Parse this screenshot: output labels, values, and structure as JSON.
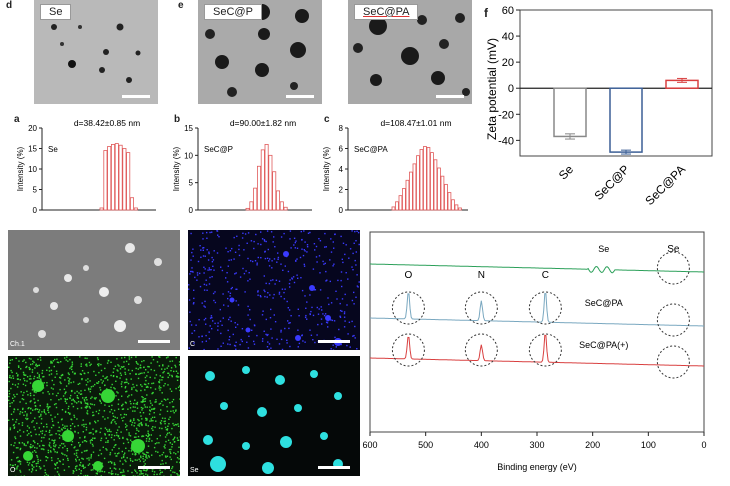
{
  "panel_letters": {
    "d": "d",
    "e": "e",
    "f": "f",
    "a": "a",
    "b": "b",
    "c": "c"
  },
  "tem_labels": [
    "Se",
    "SeC@P",
    "SeC@PA"
  ],
  "map_labels": [
    "Ch.1",
    "C",
    "O",
    "Se"
  ],
  "colors": {
    "dls": "#e05a5a",
    "se_bar": "#888888",
    "secp_bar": "#3b5f96",
    "secpa_bar": "#d94040",
    "xps_se": "#2ca05a",
    "xps_secpa": "#7aa8c0",
    "xps_secpa_plus": "#d94040"
  },
  "chart_data": [
    {
      "id": "dls-se",
      "type": "bar",
      "annotation": "d=38.42±0.85 nm",
      "series_label": "Se",
      "ylabel": "Intensity (%)",
      "yticks": [
        "0",
        "5",
        "10",
        "15",
        "20"
      ],
      "ylim": [
        0,
        20
      ],
      "values": [
        0.5,
        14.5,
        15.5,
        16,
        16.2,
        15.8,
        15,
        14,
        3,
        0.5
      ]
    },
    {
      "id": "dls-secp",
      "type": "bar",
      "annotation": "d=90.00±1.82 nm",
      "series_label": "SeC@P",
      "ylabel": "Intensity (%)",
      "yticks": [
        "0",
        "5",
        "10",
        "15"
      ],
      "ylim": [
        0,
        15
      ],
      "values": [
        0.3,
        1.5,
        4,
        8,
        11,
        12,
        10,
        7,
        3.5,
        1.5,
        0.5
      ]
    },
    {
      "id": "dls-secpa",
      "type": "bar",
      "annotation": "d=108.47±1.01 nm",
      "series_label": "SeC@PA",
      "ylabel": "Intensity (%)",
      "yticks": [
        "0",
        "2",
        "4",
        "6",
        "8"
      ],
      "ylim": [
        0,
        8
      ],
      "values": [
        0.3,
        0.8,
        1.4,
        2.1,
        2.9,
        3.7,
        4.5,
        5.3,
        5.9,
        6.2,
        6.1,
        5.6,
        4.9,
        4.1,
        3.3,
        2.5,
        1.7,
        1.0,
        0.5,
        0.2
      ]
    },
    {
      "id": "zeta",
      "type": "bar",
      "ylabel": "Zeta potential (mV)",
      "yticks": [
        "60",
        "40",
        "20",
        "0",
        "-20",
        "-40"
      ],
      "ylim": [
        -52,
        60
      ],
      "categories": [
        "Se",
        "SeC@P",
        "SeC@PA"
      ],
      "values": [
        -37,
        -49,
        6
      ],
      "errors": [
        2,
        1.5,
        1.5
      ]
    },
    {
      "id": "xps",
      "type": "line",
      "xlabel": "Binding energy (eV)",
      "xticks": [
        "600",
        "500",
        "400",
        "300",
        "200",
        "100",
        "0"
      ],
      "xlim": [
        600,
        0
      ],
      "series": [
        {
          "name": "Se",
          "base": 0.82,
          "peaks": []
        },
        {
          "name": "SeC@PA",
          "base": 0.55,
          "peaks": [
            [
              531,
              0.14
            ],
            [
              400,
              0.1
            ],
            [
              285,
              0.16
            ]
          ]
        },
        {
          "name": "SeC@PA(+)",
          "base": 0.35,
          "peaks": [
            [
              531,
              0.12
            ],
            [
              400,
              0.08
            ],
            [
              285,
              0.15
            ]
          ]
        }
      ],
      "peak_labels": [
        "O",
        "N",
        "C"
      ],
      "se_label": "Se"
    }
  ]
}
